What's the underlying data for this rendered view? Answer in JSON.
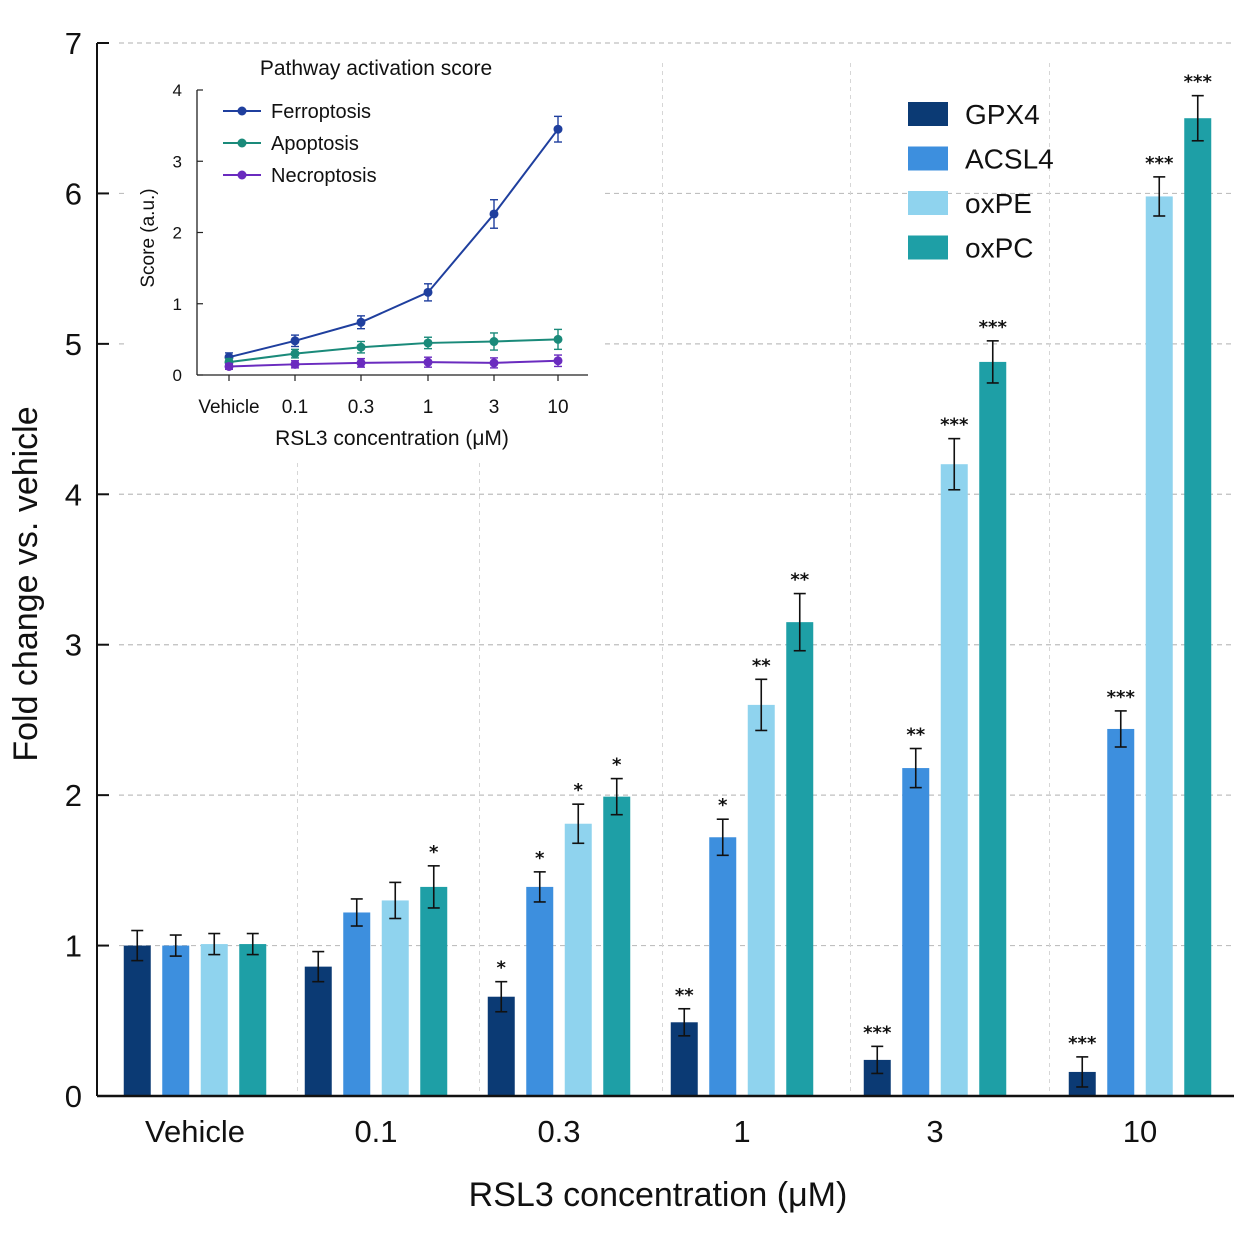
{
  "chart_data": [
    {
      "type": "bar",
      "title": "",
      "xlabel": "RSL3 concentration (μM)",
      "ylabel": "Fold change vs. vehicle",
      "ylim": [
        0,
        7
      ],
      "yticks": [
        "0",
        "1",
        "2",
        "3",
        "4",
        "5",
        "6",
        "7"
      ],
      "grid": true,
      "legend_position": "top-right",
      "categories": [
        "Vehicle",
        "0.1",
        "0.3",
        "1",
        "3",
        "10"
      ],
      "series": [
        {
          "name": "GPX4",
          "color": "#0b3a74",
          "values": [
            1.0,
            0.86,
            0.66,
            0.49,
            0.24,
            0.16
          ],
          "errors": [
            0.1,
            0.1,
            0.1,
            0.09,
            0.09,
            0.1
          ],
          "sig": [
            "",
            "",
            "*",
            "**",
            "***",
            "***"
          ]
        },
        {
          "name": "ACSL4",
          "color": "#3d8fde",
          "values": [
            1.0,
            1.22,
            1.39,
            1.72,
            2.18,
            2.44
          ],
          "errors": [
            0.07,
            0.09,
            0.1,
            0.12,
            0.13,
            0.12
          ],
          "sig": [
            "",
            "",
            "*",
            "*",
            "**",
            "***"
          ]
        },
        {
          "name": "oxPE",
          "color": "#8fd3ee",
          "values": [
            1.01,
            1.3,
            1.81,
            2.6,
            4.2,
            5.98
          ],
          "errors": [
            0.07,
            0.12,
            0.13,
            0.17,
            0.17,
            0.13
          ],
          "sig": [
            "",
            "",
            "*",
            "**",
            "***",
            "***"
          ]
        },
        {
          "name": "oxPC",
          "color": "#1e9fa6",
          "values": [
            1.01,
            1.39,
            1.99,
            3.15,
            4.88,
            6.5
          ],
          "errors": [
            0.07,
            0.14,
            0.12,
            0.19,
            0.14,
            0.15
          ],
          "sig": [
            "",
            "*",
            "*",
            "**",
            "***",
            "***"
          ]
        }
      ]
    },
    {
      "type": "line",
      "title": "Pathway activation score",
      "xlabel": "RSL3 concentration (μM)",
      "ylabel": "Score (a.u.)",
      "ylim": [
        0,
        4
      ],
      "yticks": [
        "0",
        "1",
        "2",
        "3",
        "4"
      ],
      "categories": [
        "Vehicle",
        "0.1",
        "0.3",
        "1",
        "3",
        "10"
      ],
      "legend_position": "top-left",
      "series": [
        {
          "name": "Ferroptosis",
          "color": "#1f3f9e",
          "values": [
            0.25,
            0.48,
            0.74,
            1.16,
            2.26,
            3.45
          ],
          "errors": [
            0.06,
            0.08,
            0.09,
            0.12,
            0.2,
            0.18
          ]
        },
        {
          "name": "Apoptosis",
          "color": "#1a8a7a",
          "values": [
            0.18,
            0.3,
            0.39,
            0.45,
            0.47,
            0.5
          ],
          "errors": [
            0.05,
            0.06,
            0.08,
            0.08,
            0.12,
            0.14
          ]
        },
        {
          "name": "Necroptosis",
          "color": "#6a2bbf",
          "values": [
            0.12,
            0.15,
            0.17,
            0.18,
            0.17,
            0.2
          ],
          "errors": [
            0.04,
            0.05,
            0.06,
            0.07,
            0.07,
            0.08
          ]
        }
      ]
    }
  ]
}
